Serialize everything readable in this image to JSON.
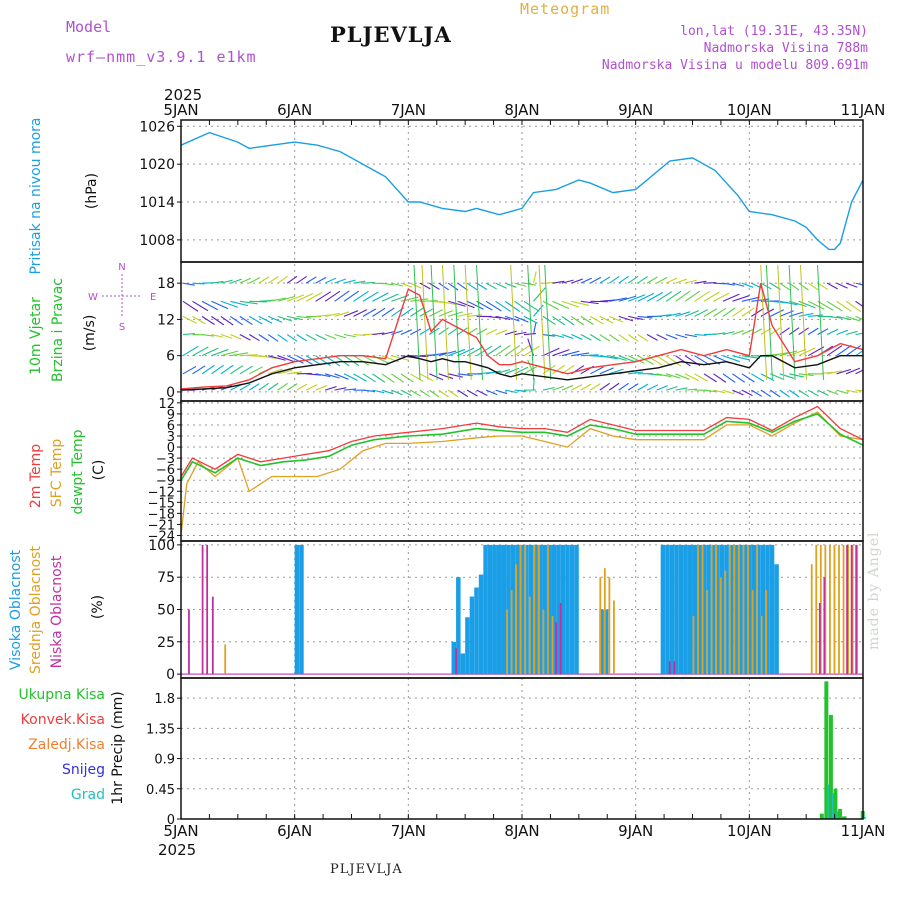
{
  "header": {
    "model_label": "Model",
    "model_version": "wrf–nmm_v3.9.1 e1km",
    "location": "PLJEVLJA",
    "product": "Meteogram",
    "lonlat": "lon,lat (19.31E, 43.35N)",
    "elevation": "Nadmorska Visina 788m",
    "model_elevation": "Nadmorska Visina u modelu 809.691m"
  },
  "footer": {
    "location": "PLJEVLJA",
    "credit": "made by Angel"
  },
  "axis": {
    "year": "2025",
    "days": [
      "5JAN",
      "6JAN",
      "7JAN",
      "8JAN",
      "9JAN",
      "10JAN",
      "11JAN"
    ]
  },
  "colors": {
    "pressure": "#1a9ee6",
    "temp2m": "#f03c3c",
    "sfc_temp": "#e0a020",
    "dewpoint": "#22c22c",
    "high_cloud": "#1a9ee6",
    "mid_cloud": "#e0a020",
    "low_cloud": "#c030a0",
    "total_precip": "#22c22c",
    "conv_precip": "#f03c3c",
    "frozen_precip": "#f08030",
    "snow": "#3030e0",
    "hail": "#20c0c0",
    "purple_text": "#b050d0"
  },
  "chart_data": [
    {
      "type": "line",
      "panel": "pressure",
      "ylabels": [
        "Pritisak na nivou mora",
        "(hPa)"
      ],
      "yticks": [
        1008,
        1014,
        1020,
        1026
      ],
      "ylim": [
        1004.5,
        1027
      ],
      "grid": true,
      "series": [
        {
          "x": [
            0,
            0.25,
            0.5,
            0.6,
            0.8,
            1.0,
            1.2,
            1.4,
            1.6,
            1.8,
            2.0,
            2.1,
            2.3,
            2.5,
            2.6,
            2.8,
            3.0,
            3.1,
            3.3,
            3.5,
            3.6,
            3.8,
            4.0,
            4.3,
            4.5,
            4.7,
            4.9,
            5.0,
            5.2,
            5.4,
            5.5,
            5.6,
            5.7,
            5.75,
            5.8,
            5.9,
            6.0
          ],
          "values": [
            1023,
            1025,
            1023.5,
            1022.5,
            1023,
            1023.5,
            1023,
            1022,
            1020,
            1018,
            1014,
            1014,
            1013,
            1012.5,
            1013,
            1012,
            1013,
            1015.5,
            1016,
            1017.5,
            1017,
            1015.5,
            1016,
            1020.5,
            1021,
            1019,
            1015,
            1012.5,
            1012,
            1011,
            1010,
            1008,
            1006.5,
            1006.5,
            1007.5,
            1014,
            1017.5
          ]
        }
      ]
    },
    {
      "type": "line",
      "panel": "wind",
      "ylabels": [
        "10m Vjetar",
        "Brzina i Pravac",
        "(m/s)"
      ],
      "compass": [
        "N",
        "W",
        "E",
        "S"
      ],
      "yticks": [
        0,
        6,
        12,
        18
      ],
      "ylim": [
        -1.5,
        21.5
      ],
      "grid": true,
      "series": [
        {
          "name": "gust",
          "x": [
            0,
            0.2,
            0.4,
            0.6,
            0.8,
            1.0,
            1.2,
            1.4,
            1.6,
            1.8,
            2.0,
            2.1,
            2.2,
            2.3,
            2.4,
            2.5,
            2.6,
            2.7,
            2.8,
            2.9,
            3.0,
            3.2,
            3.4,
            3.6,
            3.8,
            4.0,
            4.2,
            4.4,
            4.6,
            4.8,
            5.0,
            5.1,
            5.2,
            5.4,
            5.6,
            5.8,
            6.0
          ],
          "values": [
            0.5,
            0.8,
            1,
            2,
            4,
            5,
            5.5,
            6,
            6,
            5.5,
            17,
            16,
            10,
            12,
            11,
            10,
            9,
            6,
            4.5,
            4.5,
            5,
            4,
            3,
            4,
            4.5,
            5,
            6,
            7,
            6,
            7,
            6,
            18,
            11,
            5,
            6,
            8,
            7
          ]
        },
        {
          "name": "speed",
          "x": [
            0,
            0.2,
            0.4,
            0.6,
            0.8,
            1.0,
            1.2,
            1.4,
            1.6,
            1.8,
            2.0,
            2.1,
            2.2,
            2.3,
            2.4,
            2.5,
            2.6,
            2.7,
            2.8,
            2.9,
            3.0,
            3.2,
            3.4,
            3.6,
            3.8,
            4.0,
            4.2,
            4.4,
            4.6,
            4.8,
            5.0,
            5.1,
            5.2,
            5.4,
            5.6,
            5.8,
            6.0
          ],
          "values": [
            0.3,
            0.5,
            0.7,
            1.5,
            3,
            4,
            4.5,
            5,
            5,
            4.5,
            6,
            5.5,
            5,
            5.5,
            5,
            5,
            4.5,
            4,
            3,
            2.5,
            3,
            2.5,
            2,
            2.5,
            3,
            3.5,
            4,
            5,
            4.5,
            5,
            4,
            6,
            6,
            4,
            4.5,
            6,
            6
          ]
        }
      ]
    },
    {
      "type": "line",
      "panel": "temperature",
      "ylabels": [
        "2m Temp",
        "SFC Temp",
        "dewpt Temp",
        "(C)"
      ],
      "yticks": [
        -24,
        -21,
        -18,
        -15,
        -12,
        -9,
        -6,
        -3,
        0,
        3,
        6,
        9,
        12
      ],
      "ylim": [
        -25.5,
        12.5
      ],
      "grid": true,
      "series": [
        {
          "name": "2m Temp",
          "x": [
            0,
            0.1,
            0.3,
            0.5,
            0.7,
            0.9,
            1.1,
            1.3,
            1.5,
            1.7,
            2.0,
            2.3,
            2.6,
            2.8,
            3.0,
            3.2,
            3.4,
            3.6,
            3.8,
            4.0,
            4.3,
            4.6,
            4.8,
            5.0,
            5.2,
            5.4,
            5.6,
            5.8,
            6.0
          ],
          "values": [
            -8,
            -3,
            -6,
            -2,
            -4,
            -3,
            -2,
            -1,
            1.5,
            3,
            4,
            5,
            6.5,
            5.5,
            5,
            5,
            4,
            7.5,
            6,
            4.5,
            4.5,
            4.5,
            8,
            7.5,
            4.5,
            8,
            11,
            5,
            2
          ]
        },
        {
          "name": "SFC Temp",
          "x": [
            0,
            0.05,
            0.15,
            0.3,
            0.5,
            0.6,
            0.8,
            1.0,
            1.2,
            1.4,
            1.6,
            1.8,
            2.0,
            2.3,
            2.6,
            2.8,
            3.0,
            3.2,
            3.4,
            3.6,
            3.8,
            4.0,
            4.3,
            4.6,
            4.8,
            5.0,
            5.2,
            5.4,
            5.6,
            5.8,
            6.0
          ],
          "values": [
            -24,
            -10,
            -4,
            -8,
            -3,
            -12,
            -8,
            -8,
            -8,
            -6,
            -1,
            1,
            1,
            1.5,
            2.5,
            3,
            3,
            1.5,
            0,
            5,
            3,
            2,
            2,
            2,
            6,
            6,
            3,
            6.5,
            9.5,
            3,
            2
          ]
        },
        {
          "name": "dewpt Temp",
          "x": [
            0,
            0.1,
            0.3,
            0.5,
            0.7,
            0.9,
            1.1,
            1.3,
            1.5,
            1.7,
            2.0,
            2.3,
            2.6,
            2.8,
            3.0,
            3.2,
            3.4,
            3.6,
            3.8,
            4.0,
            4.3,
            4.6,
            4.8,
            5.0,
            5.2,
            5.4,
            5.6,
            5.8,
            6.0
          ],
          "values": [
            -9,
            -4,
            -7,
            -3,
            -5,
            -4,
            -3.5,
            -2.5,
            0.5,
            2,
            3,
            3.5,
            5,
            4.5,
            4,
            4,
            3,
            6,
            5,
            3.5,
            3.5,
            3.5,
            7,
            6.5,
            4,
            7,
            9,
            3.5,
            0.5
          ]
        }
      ]
    },
    {
      "type": "bar",
      "panel": "clouds",
      "ylabels": [
        "Visoka Oblacnost",
        "Srednja Oblacnost",
        "Niska Oblacnost",
        "(%)"
      ],
      "yticks": [
        0,
        25,
        50,
        75,
        100
      ],
      "ylim": [
        -3,
        103
      ],
      "grid": true,
      "series": [
        {
          "name": "Visoka Oblacnost",
          "x": [
            1.0,
            1.04,
            2.38,
            2.42,
            2.46,
            2.5,
            2.54,
            2.58,
            2.62,
            2.66,
            2.7,
            2.74,
            2.78,
            2.82,
            2.86,
            2.9,
            2.94,
            2.98,
            3.02,
            3.06,
            3.1,
            3.14,
            3.18,
            3.22,
            3.26,
            3.3,
            3.34,
            3.38,
            3.42,
            3.46,
            3.68,
            3.72,
            4.22,
            4.26,
            4.3,
            4.34,
            4.38,
            4.42,
            4.46,
            4.5,
            4.54,
            4.58,
            4.62,
            4.66,
            4.7,
            4.74,
            4.78,
            4.82,
            4.86,
            4.9,
            4.94,
            4.98,
            5.02,
            5.06,
            5.1,
            5.14,
            5.18,
            5.22
          ],
          "values": [
            100,
            100,
            25,
            75,
            16,
            44,
            60,
            67,
            77,
            100,
            100,
            100,
            100,
            100,
            100,
            100,
            100,
            100,
            100,
            100,
            100,
            100,
            100,
            100,
            100,
            100,
            100,
            100,
            100,
            100,
            50,
            50,
            100,
            100,
            100,
            100,
            100,
            100,
            100,
            100,
            100,
            100,
            100,
            100,
            100,
            100,
            100,
            100,
            100,
            100,
            100,
            100,
            100,
            100,
            100,
            100,
            100,
            85
          ]
        },
        {
          "name": "Srednja Oblacnost",
          "x": [
            0.38,
            2.86,
            2.9,
            2.94,
            2.98,
            3.02,
            3.06,
            3.1,
            3.14,
            3.18,
            3.22,
            3.26,
            3.68,
            3.72,
            3.76,
            3.8,
            4.5,
            4.54,
            4.58,
            4.62,
            4.66,
            4.7,
            4.74,
            4.78,
            4.82,
            4.86,
            4.9,
            4.94,
            4.98,
            5.02,
            5.06,
            5.1,
            5.14,
            5.54,
            5.58,
            5.62,
            5.66,
            5.7,
            5.74,
            5.78,
            5.82,
            5.86,
            5.9,
            5.94
          ],
          "values": [
            23,
            50,
            65,
            85,
            100,
            100,
            60,
            100,
            100,
            50,
            100,
            45,
            75,
            82,
            75,
            57,
            45,
            100,
            100,
            65,
            100,
            100,
            75,
            80,
            100,
            100,
            100,
            100,
            100,
            65,
            100,
            45,
            65,
            85,
            100,
            100,
            100,
            100,
            100,
            100,
            100,
            100,
            100,
            100
          ]
        },
        {
          "name": "Niska Oblacnost",
          "x": [
            0.07,
            0.19,
            0.23,
            0.28,
            2.42,
            3.3,
            3.34,
            4.3,
            4.34,
            5.62,
            5.66,
            5.86,
            5.9,
            5.94
          ],
          "values": [
            50,
            100,
            100,
            60,
            20,
            40,
            55,
            10,
            10,
            55,
            75,
            100,
            100,
            100
          ]
        }
      ]
    },
    {
      "type": "bar",
      "panel": "precipitation",
      "ylabels": [
        "1hr Precip (mm)"
      ],
      "legend": [
        "Ukupna Kisa",
        "Konvek.Kisa",
        "Zaledj.Kisa",
        "Snijeg",
        "Grad"
      ],
      "yticks": [
        0,
        0.45,
        0.9,
        1.35,
        1.8
      ],
      "ylim": [
        0,
        2.1
      ],
      "grid": true,
      "series": [
        {
          "name": "Ukupna Kisa",
          "x": [
            5.62,
            5.66,
            5.7,
            5.74,
            5.78,
            5.82,
            5.98
          ],
          "values": [
            0.08,
            2.05,
            1.55,
            0.45,
            0.15,
            0.04,
            0.12
          ]
        },
        {
          "name": "Konvek.Kisa",
          "x": [],
          "values": []
        },
        {
          "name": "Zaledj.Kisa",
          "x": [],
          "values": []
        },
        {
          "name": "Snijeg",
          "x": [],
          "values": []
        },
        {
          "name": "Grad",
          "x": [],
          "values": []
        }
      ]
    }
  ]
}
